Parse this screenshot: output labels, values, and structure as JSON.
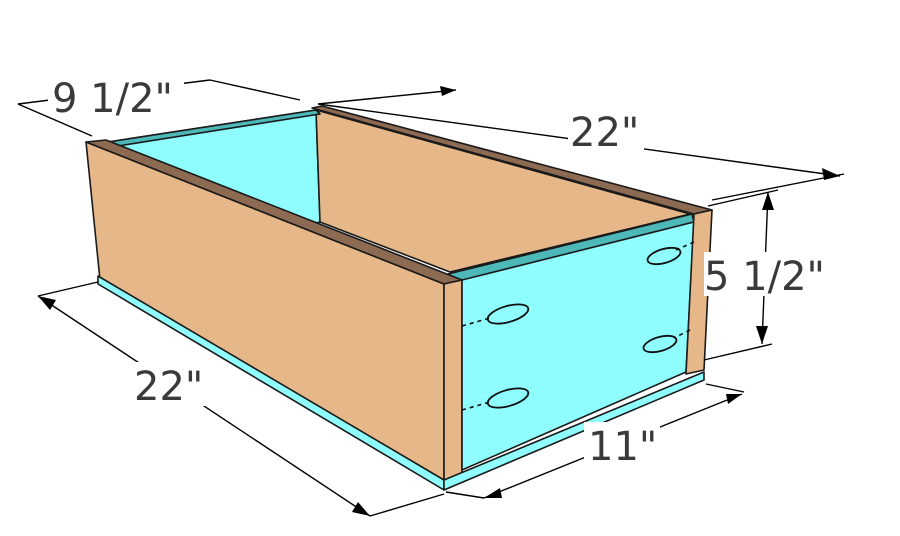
{
  "dimensions": {
    "width_top": "9 1/2\"",
    "length_top": "22\"",
    "height": "5 1/2\"",
    "length_front": "22\"",
    "width_front": "11\""
  },
  "colors": {
    "wood": "#e6b889",
    "wood_edge": "#8d6a52",
    "plywood": "#8ffdfd",
    "plywood_edge": "#4db8b8"
  },
  "icons": {
    "pocket_holes": "pocket-hole-marks"
  }
}
